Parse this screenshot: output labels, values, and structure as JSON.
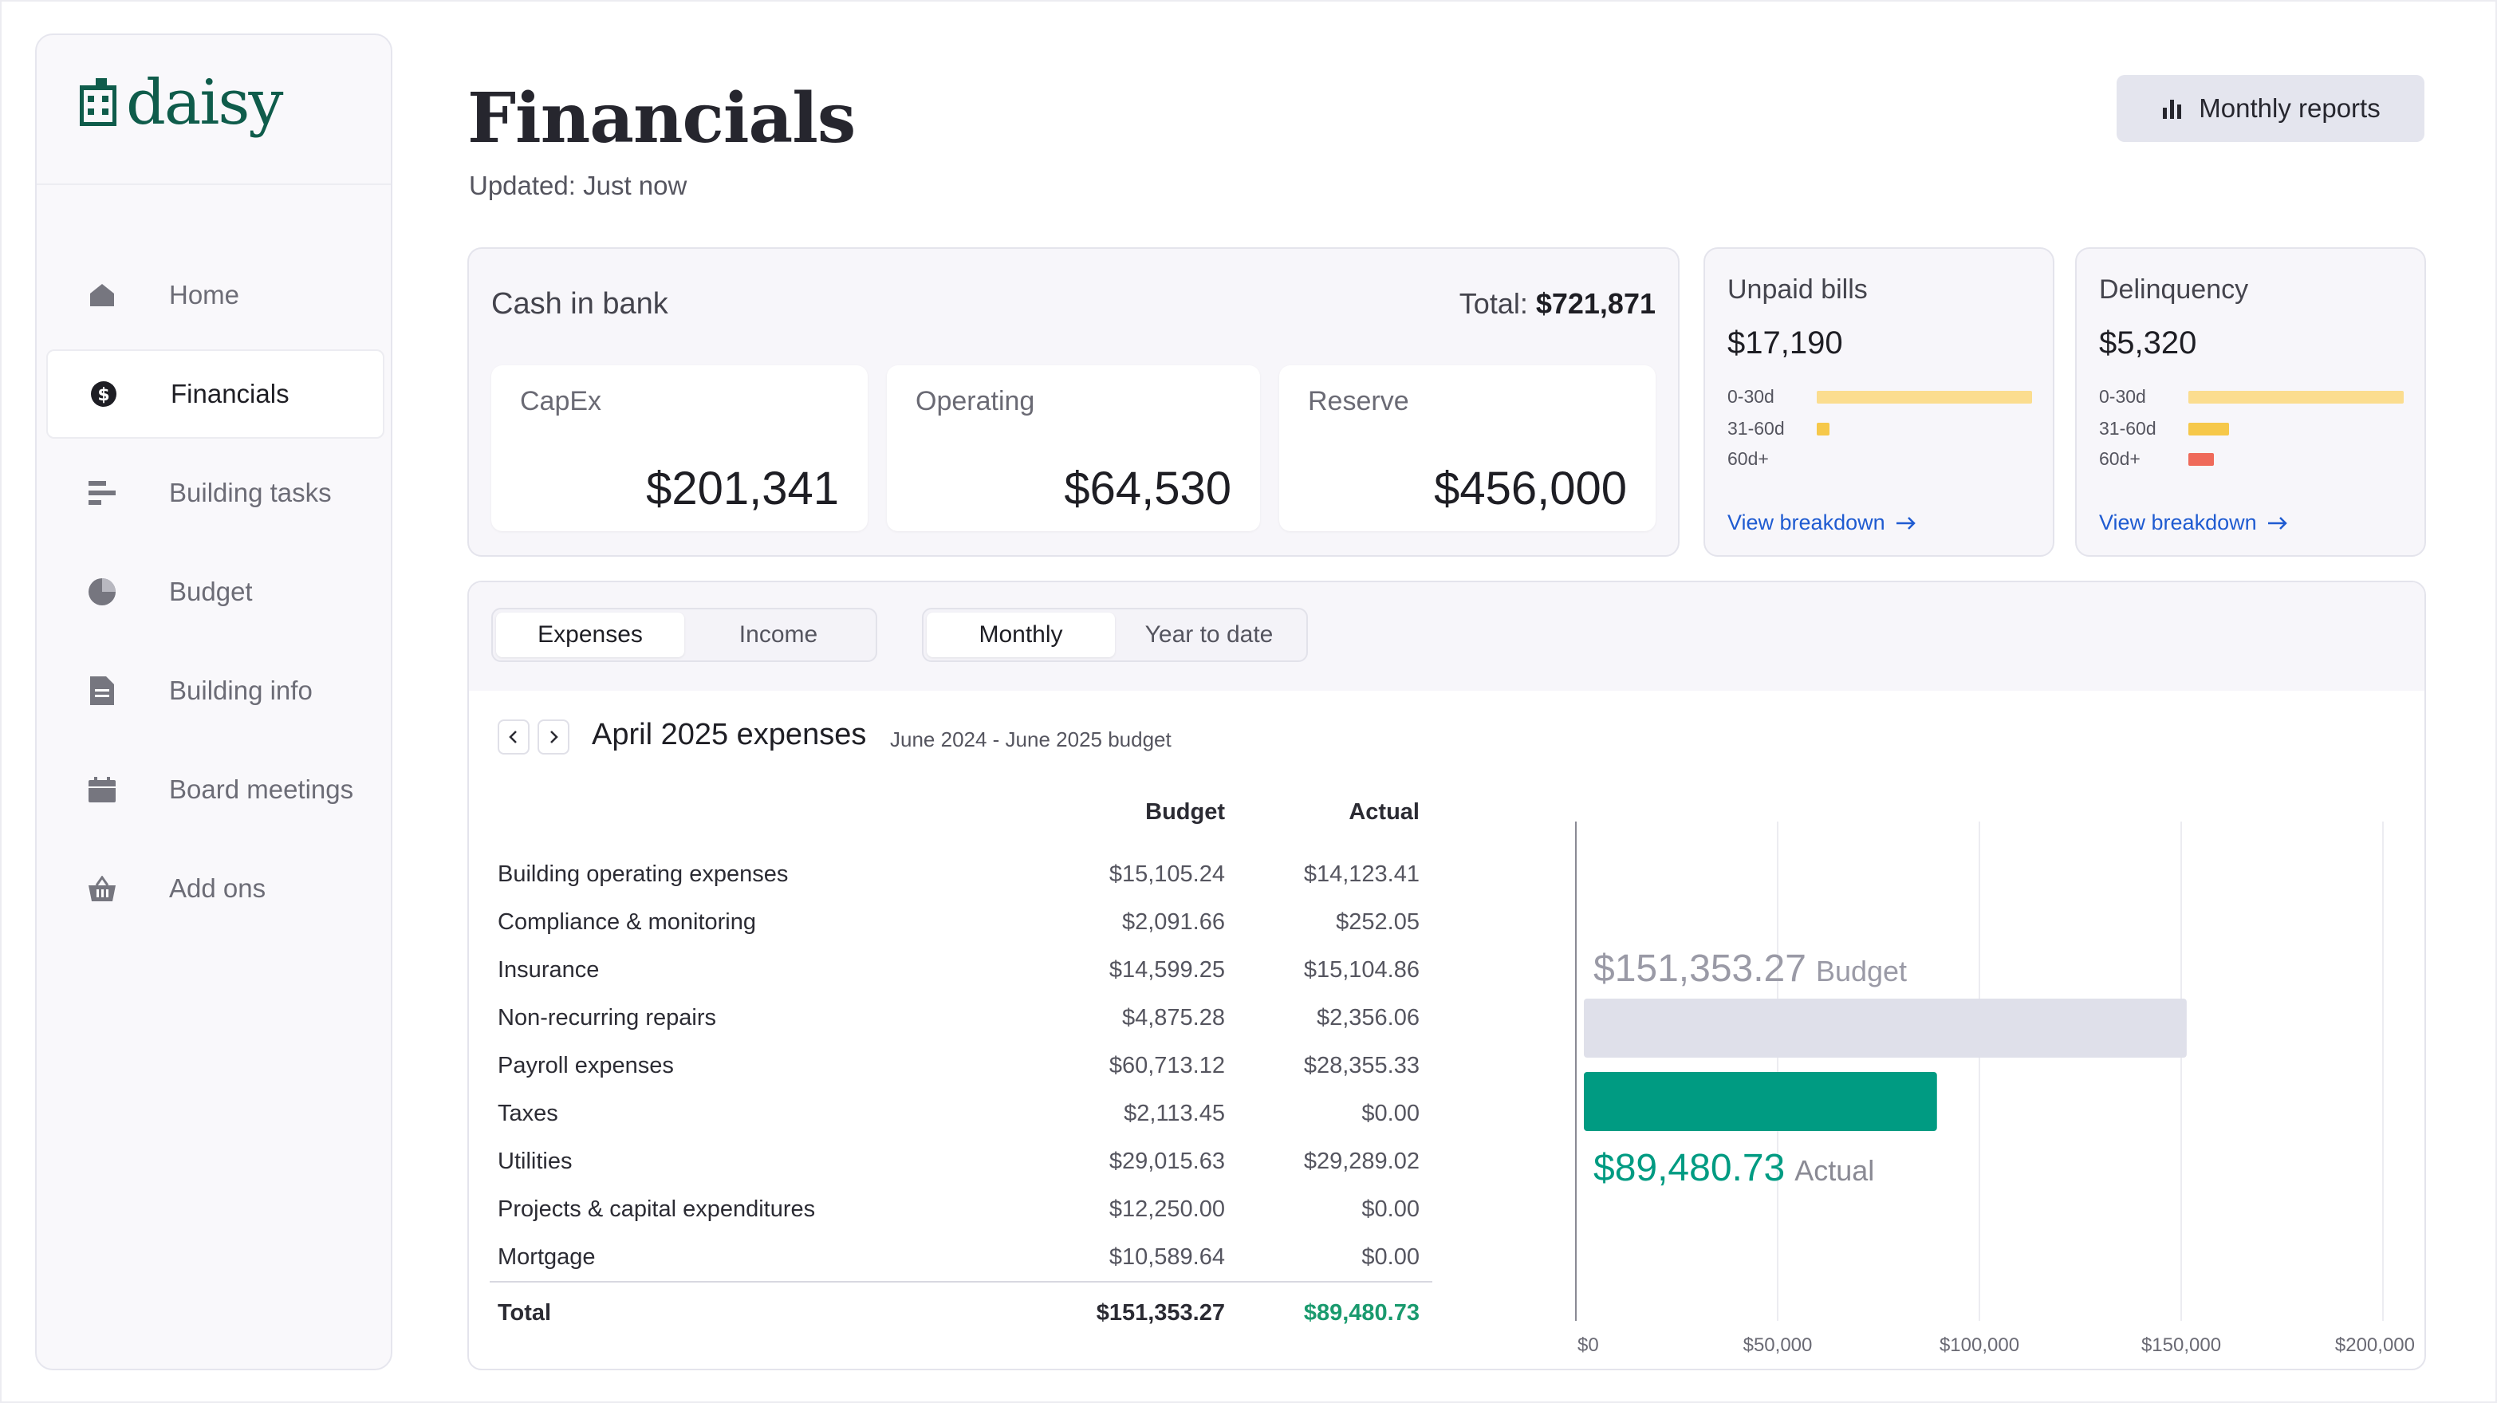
{
  "app": {
    "logo_text": "daisy",
    "accent": "#0f5c4b"
  },
  "sidebar": {
    "items": [
      {
        "label": "Home",
        "icon": "home-icon",
        "active": false
      },
      {
        "label": "Financials",
        "icon": "dollar-circle-icon",
        "active": true
      },
      {
        "label": "Building tasks",
        "icon": "tasks-icon",
        "active": false
      },
      {
        "label": "Budget",
        "icon": "pie-chart-icon",
        "active": false
      },
      {
        "label": "Building info",
        "icon": "document-icon",
        "active": false
      },
      {
        "label": "Board meetings",
        "icon": "calendar-icon",
        "active": false
      },
      {
        "label": "Add ons",
        "icon": "basket-icon",
        "active": false
      }
    ]
  },
  "header": {
    "title": "Financials",
    "updated": "Updated: Just now",
    "reports_button": "Monthly reports"
  },
  "cash": {
    "title": "Cash in bank",
    "total_label": "Total: ",
    "total_value": "$721,871",
    "accounts": [
      {
        "label": "CapEx",
        "value": "$201,341"
      },
      {
        "label": "Operating",
        "value": "$64,530"
      },
      {
        "label": "Reserve",
        "value": "$456,000"
      }
    ]
  },
  "unpaid": {
    "title": "Unpaid bills",
    "value": "$17,190",
    "aging": [
      {
        "label": "0-30d",
        "fraction": 1.0,
        "color": "#fbdd8f"
      },
      {
        "label": "31-60d",
        "fraction": 0.06,
        "color": "#f6c84a"
      },
      {
        "label": "60d+",
        "fraction": 0.0,
        "color": "#ef6a5a"
      }
    ],
    "link": "View breakdown"
  },
  "delinquency": {
    "title": "Delinquency",
    "value": "$5,320",
    "aging": [
      {
        "label": "0-30d",
        "fraction": 1.0,
        "color": "#fbdd8f"
      },
      {
        "label": "31-60d",
        "fraction": 0.19,
        "color": "#f6c84a"
      },
      {
        "label": "60d+",
        "fraction": 0.12,
        "color": "#ef6a5a"
      }
    ],
    "link": "View breakdown"
  },
  "tabs": {
    "type": [
      "Expenses",
      "Income"
    ],
    "period": [
      "Monthly",
      "Year to date"
    ]
  },
  "expenses": {
    "title": "April 2025 expenses",
    "subtitle": "June 2024 - June 2025 budget",
    "col_budget": "Budget",
    "col_actual": "Actual",
    "rows": [
      {
        "name": "Building operating expenses",
        "budget": "$15,105.24",
        "actual": "$14,123.41"
      },
      {
        "name": "Compliance & monitoring",
        "budget": "$2,091.66",
        "actual": "$252.05"
      },
      {
        "name": "Insurance",
        "budget": "$14,599.25",
        "actual": "$15,104.86"
      },
      {
        "name": "Non-recurring repairs",
        "budget": "$4,875.28",
        "actual": "$2,356.06"
      },
      {
        "name": "Payroll expenses",
        "budget": "$60,713.12",
        "actual": "$28,355.33"
      },
      {
        "name": "Taxes",
        "budget": "$2,113.45",
        "actual": "$0.00"
      },
      {
        "name": "Utilities",
        "budget": "$29,015.63",
        "actual": "$29,289.02"
      },
      {
        "name": "Projects & capital expenditures",
        "budget": "$12,250.00",
        "actual": "$0.00"
      },
      {
        "name": "Mortgage",
        "budget": "$10,589.64",
        "actual": "$0.00"
      }
    ],
    "total": {
      "label": "Total",
      "budget": "$151,353.27",
      "actual": "$89,480.73"
    }
  },
  "chart_data": {
    "type": "bar",
    "orientation": "horizontal",
    "categories": [
      "Budget",
      "Actual"
    ],
    "values": [
      151353.27,
      89480.73
    ],
    "value_labels": [
      "$151,353.27",
      "$89,480.73"
    ],
    "colors": [
      "#dfe0ea",
      "#009b82"
    ],
    "label_colors": [
      "#9a9aa6",
      "#009b82"
    ],
    "xlim": [
      0,
      200000
    ],
    "ticks": [
      0,
      50000,
      100000,
      150000,
      200000
    ],
    "tick_labels": [
      "$0",
      "$50,000",
      "$100,000",
      "$150,000",
      "$200,000"
    ],
    "grid": true
  }
}
